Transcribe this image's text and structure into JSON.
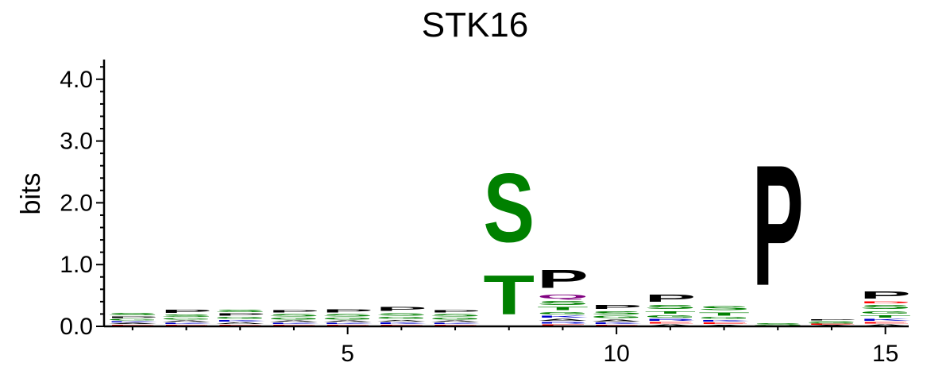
{
  "chart_data": {
    "type": "sequence-logo",
    "title": "STK16",
    "ylabel": "bits",
    "ylim": [
      0,
      4.3
    ],
    "y_ticks": [
      "0.0",
      "1.0",
      "2.0",
      "3.0",
      "4.0"
    ],
    "x_ticks": [
      "5",
      "10",
      "15"
    ],
    "x_tick_positions": [
      5,
      10,
      15
    ],
    "colors": {
      "S": "#008000",
      "T": "#008000",
      "G": "#008000",
      "Y": "#008000",
      "C": "#008000",
      "P": "#000000",
      "A": "#000000",
      "V": "#000000",
      "L": "#000000",
      "I": "#000000",
      "F": "#000000",
      "M": "#000000",
      "W": "#000000",
      "Q": "#800080",
      "N": "#800080",
      "K": "#0000cc",
      "R": "#0000cc",
      "H": "#0000cc",
      "D": "#ff0000",
      "E": "#ff0000"
    },
    "positions": [
      {
        "pos": 1,
        "letters": [
          [
            "E",
            0.03
          ],
          [
            "A",
            0.03
          ],
          [
            "K",
            0.03
          ],
          [
            "G",
            0.04
          ],
          [
            "P",
            0.04
          ],
          [
            "S",
            0.06
          ]
        ]
      },
      {
        "pos": 2,
        "letters": [
          [
            "E",
            0.03
          ],
          [
            "K",
            0.03
          ],
          [
            "A",
            0.04
          ],
          [
            "G",
            0.04
          ],
          [
            "S",
            0.06
          ],
          [
            "P",
            0.08
          ]
        ]
      },
      {
        "pos": 3,
        "letters": [
          [
            "E",
            0.03
          ],
          [
            "A",
            0.04
          ],
          [
            "K",
            0.04
          ],
          [
            "G",
            0.05
          ],
          [
            "P",
            0.06
          ],
          [
            "S",
            0.07
          ]
        ]
      },
      {
        "pos": 4,
        "letters": [
          [
            "E",
            0.03
          ],
          [
            "K",
            0.03
          ],
          [
            "A",
            0.04
          ],
          [
            "G",
            0.05
          ],
          [
            "S",
            0.06
          ],
          [
            "P",
            0.06
          ]
        ]
      },
      {
        "pos": 5,
        "letters": [
          [
            "E",
            0.03
          ],
          [
            "K",
            0.03
          ],
          [
            "A",
            0.04
          ],
          [
            "G",
            0.05
          ],
          [
            "S",
            0.06
          ],
          [
            "P",
            0.08
          ]
        ]
      },
      {
        "pos": 6,
        "letters": [
          [
            "E",
            0.03
          ],
          [
            "K",
            0.04
          ],
          [
            "A",
            0.04
          ],
          [
            "G",
            0.05
          ],
          [
            "S",
            0.07
          ],
          [
            "P",
            0.1
          ]
        ]
      },
      {
        "pos": 7,
        "letters": [
          [
            "E",
            0.03
          ],
          [
            "K",
            0.03
          ],
          [
            "A",
            0.04
          ],
          [
            "G",
            0.05
          ],
          [
            "S",
            0.06
          ],
          [
            "P",
            0.07
          ]
        ]
      },
      {
        "pos": 8,
        "letters": [
          [
            "T",
            1.02
          ],
          [
            "S",
            1.78
          ]
        ]
      },
      {
        "pos": 9,
        "letters": [
          [
            "E",
            0.04
          ],
          [
            "R",
            0.04
          ],
          [
            "A",
            0.05
          ],
          [
            "K",
            0.05
          ],
          [
            "G",
            0.07
          ],
          [
            "T",
            0.08
          ],
          [
            "S",
            0.1
          ],
          [
            "Q",
            0.1
          ],
          [
            "P",
            0.47
          ]
        ]
      },
      {
        "pos": 10,
        "letters": [
          [
            "E",
            0.03
          ],
          [
            "K",
            0.04
          ],
          [
            "A",
            0.05
          ],
          [
            "G",
            0.06
          ],
          [
            "S",
            0.08
          ],
          [
            "P",
            0.1
          ]
        ]
      },
      {
        "pos": 11,
        "letters": [
          [
            "A",
            0.04
          ],
          [
            "E",
            0.04
          ],
          [
            "R",
            0.05
          ],
          [
            "G",
            0.06
          ],
          [
            "T",
            0.07
          ],
          [
            "S",
            0.1
          ],
          [
            "P",
            0.18
          ]
        ]
      },
      {
        "pos": 12,
        "letters": [
          [
            "A",
            0.03
          ],
          [
            "E",
            0.04
          ],
          [
            "K",
            0.04
          ],
          [
            "G",
            0.05
          ],
          [
            "T",
            0.08
          ],
          [
            "S",
            0.11
          ]
        ]
      },
      {
        "pos": 13,
        "letters": [
          [
            "S",
            0.06
          ],
          [
            "P",
            3.12
          ]
        ]
      },
      {
        "pos": 14,
        "letters": [
          [
            "A",
            0.02
          ],
          [
            "E",
            0.02
          ],
          [
            "G",
            0.02
          ],
          [
            "S",
            0.03
          ],
          [
            "P",
            0.03
          ]
        ]
      },
      {
        "pos": 15,
        "letters": [
          [
            "A",
            0.04
          ],
          [
            "E",
            0.04
          ],
          [
            "K",
            0.05
          ],
          [
            "T",
            0.06
          ],
          [
            "G",
            0.07
          ],
          [
            "S",
            0.1
          ],
          [
            "D",
            0.05
          ],
          [
            "P",
            0.19
          ]
        ]
      }
    ]
  }
}
